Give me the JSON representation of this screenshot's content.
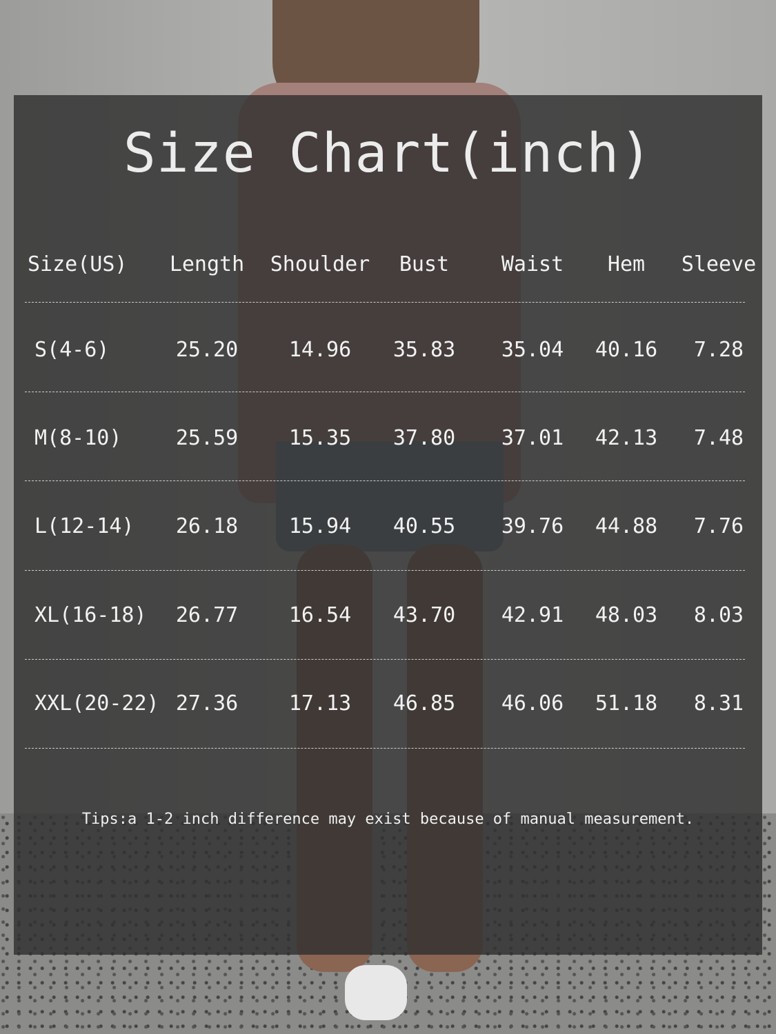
{
  "title": "Size Chart(inch)",
  "table": {
    "headers": [
      "Size(US)",
      "Length",
      "Shoulder",
      "Bust",
      "Waist",
      "Hem",
      "Sleeve"
    ],
    "rows": [
      [
        "S(4-6)",
        "25.20",
        "14.96",
        "35.83",
        "35.04",
        "40.16",
        "7.28"
      ],
      [
        "M(8-10)",
        "25.59",
        "15.35",
        "37.80",
        "37.01",
        "42.13",
        "7.48"
      ],
      [
        "L(12-14)",
        "26.18",
        "15.94",
        "40.55",
        "39.76",
        "44.88",
        "7.76"
      ],
      [
        "XL(16-18)",
        "26.77",
        "16.54",
        "43.70",
        "42.91",
        "48.03",
        "8.03"
      ],
      [
        "XXL(20-22)",
        "27.36",
        "17.13",
        "46.85",
        "46.06",
        "51.18",
        "8.31"
      ]
    ]
  },
  "tips": "Tips:a 1-2 inch difference may exist because of manual measurement.",
  "colors": {
    "overlay": "#303030",
    "text": "#f2f2f2"
  }
}
